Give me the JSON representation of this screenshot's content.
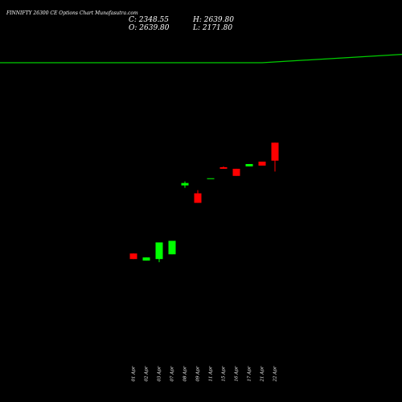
{
  "chart_data": {
    "type": "candlestick",
    "title": "FINNIFTY 26300 CE Options Chart Munafasutra.com",
    "summary": {
      "close_label": "C: 2348.55",
      "high_label": "H: 2639.80",
      "open_label": "O: 2639.80",
      "low_label": "L: 2171.80"
    },
    "categories": [
      "01 Apr",
      "02 Apr",
      "03 Apr",
      "07 Apr",
      "08 Apr",
      "09 Apr",
      "11 Apr",
      "15 Apr",
      "16 Apr",
      "17 Apr",
      "21 Apr",
      "22 Apr"
    ],
    "open": [
      845,
      730,
      755,
      832,
      1947.5,
      1819,
      2063,
      2242.4,
      2216.7,
      2255,
      2332.1,
      2639.8
    ],
    "high": [
      845,
      781,
      1024.5,
      1050,
      2011.6,
      1870.6,
      2063,
      2255,
      2216.7,
      2293.7,
      2332.1,
      2639.8
    ],
    "low": [
      755,
      730,
      704,
      832,
      1909,
      1665,
      2063,
      2216.7,
      2101.4,
      2255,
      2268,
      2171.8
    ],
    "close": [
      755,
      781,
      1024.5,
      1050,
      1986,
      1665,
      2063,
      2216.7,
      2101.4,
      2293.7,
      2268,
      2348.55
    ],
    "up_color": "#00ff00",
    "down_color": "#ff0000",
    "line": {
      "color": "#00cc00",
      "values": [
        3934.6,
        3934.6,
        3934.6,
        3934.6,
        3934.6,
        3934.6,
        3934.6,
        3934.6,
        3934.6,
        3934.6,
        3934.6,
        3947
      ]
    },
    "ylim": [
      -1560,
      4950
    ]
  }
}
